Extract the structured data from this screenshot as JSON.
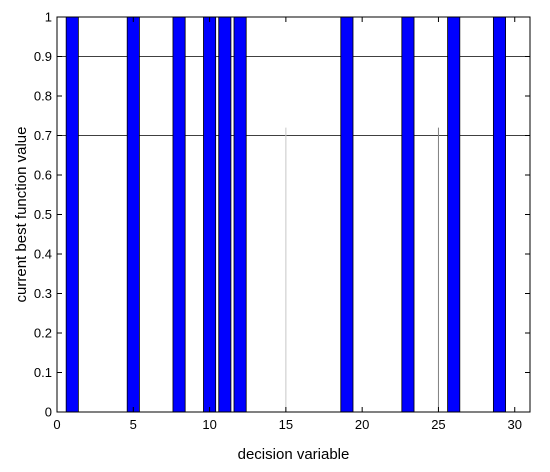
{
  "chart_data": {
    "type": "bar",
    "title": "",
    "xlabel": "decision variable",
    "ylabel": "current best function value",
    "xlim": [
      0,
      31
    ],
    "ylim": [
      0,
      1
    ],
    "x": [
      1,
      5,
      8,
      10,
      11,
      12,
      19,
      23,
      26,
      29
    ],
    "values": [
      1,
      1,
      1,
      1,
      1,
      1,
      1,
      1,
      1,
      1
    ],
    "bar_color": "#0000ff",
    "x_ticks": [
      0,
      5,
      10,
      15,
      20,
      25,
      30
    ],
    "y_ticks": [
      0,
      0.1,
      0.2,
      0.3,
      0.4,
      0.5,
      0.6,
      0.7,
      0.8,
      0.9,
      1
    ],
    "x_tick_labels": [
      "0",
      "5",
      "10",
      "15",
      "20",
      "25",
      "30"
    ],
    "y_tick_labels": [
      "0",
      "0.1",
      "0.2",
      "0.3",
      "0.4",
      "0.5",
      "0.6",
      "0.7",
      "0.8",
      "0.9",
      "1"
    ],
    "reference_lines": [
      {
        "axis": "y",
        "value": 0.9
      },
      {
        "axis": "y",
        "value": 0.7
      }
    ],
    "vertical_lines": [
      {
        "x": 15,
        "y_top": 0.72,
        "color": "#c8c8c8"
      },
      {
        "x": 25,
        "y_top": 0.72,
        "color": "#808080"
      }
    ],
    "grid": false,
    "legend": "none"
  }
}
